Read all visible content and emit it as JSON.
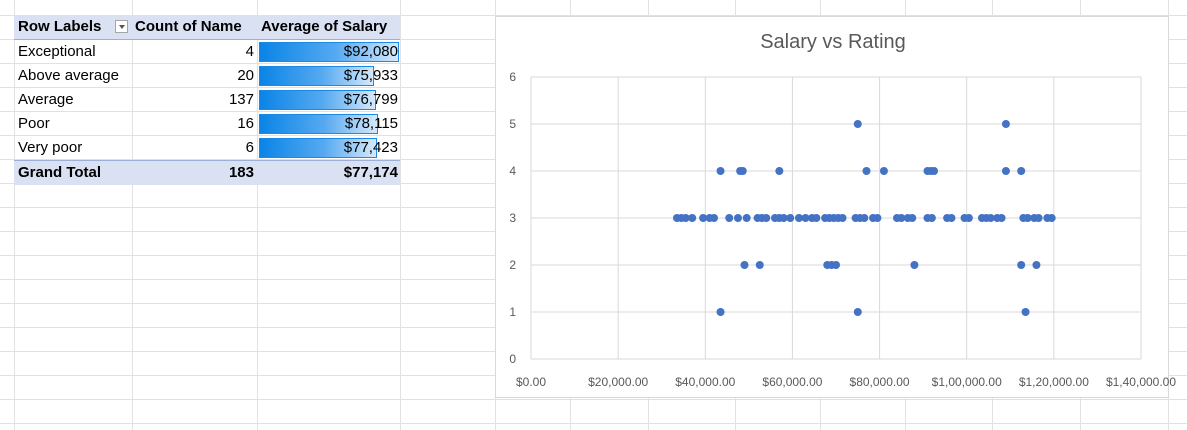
{
  "pivot": {
    "headers": {
      "row_labels": "Row Labels",
      "count_of_name": "Count of Name",
      "average_of_salary": "Average of Salary"
    },
    "rows": [
      {
        "label": "Exceptional",
        "count": "4",
        "average": "$92,080",
        "average_value": 92080
      },
      {
        "label": "Above average",
        "count": "20",
        "average": "$75,933",
        "average_value": 75933
      },
      {
        "label": "Average",
        "count": "137",
        "average": "$76,799",
        "average_value": 76799
      },
      {
        "label": "Poor",
        "count": "16",
        "average": "$78,115",
        "average_value": 78115
      },
      {
        "label": "Very poor",
        "count": "6",
        "average": "$77,423",
        "average_value": 77423
      }
    ],
    "grand_total": {
      "label": "Grand Total",
      "count": "183",
      "average": "$77,174"
    },
    "databar_color": "#0a84e6"
  },
  "chart_data": {
    "type": "scatter",
    "title": "Salary vs Rating",
    "xlabel": "",
    "ylabel": "",
    "xlim": [
      0,
      140000
    ],
    "ylim": [
      0,
      6
    ],
    "x_tick_labels": [
      "$0.00",
      "$20,000.00",
      "$40,000.00",
      "$60,000.00",
      "$80,000.00",
      "$1,00,000.00",
      "$1,20,000.00",
      "$1,40,000.00"
    ],
    "y_tick_labels": [
      "0",
      "1",
      "2",
      "3",
      "4",
      "5",
      "6"
    ],
    "grid": true,
    "legend": "none",
    "marker_color": "#4472c4",
    "series": [
      {
        "points": [
          [
            75000,
            5
          ],
          [
            109000,
            5
          ],
          [
            43500,
            4
          ],
          [
            48000,
            4
          ],
          [
            48600,
            4
          ],
          [
            57000,
            4
          ],
          [
            77000,
            4
          ],
          [
            81000,
            4
          ],
          [
            91000,
            4
          ],
          [
            91800,
            4
          ],
          [
            92500,
            4
          ],
          [
            109000,
            4
          ],
          [
            112500,
            4
          ],
          [
            33500,
            3
          ],
          [
            34500,
            3
          ],
          [
            35500,
            3
          ],
          [
            37000,
            3
          ],
          [
            39500,
            3
          ],
          [
            41000,
            3
          ],
          [
            42000,
            3
          ],
          [
            45500,
            3
          ],
          [
            47500,
            3
          ],
          [
            49500,
            3
          ],
          [
            52000,
            3
          ],
          [
            53000,
            3
          ],
          [
            54000,
            3
          ],
          [
            56000,
            3
          ],
          [
            57000,
            3
          ],
          [
            58000,
            3
          ],
          [
            59500,
            3
          ],
          [
            61500,
            3
          ],
          [
            63000,
            3
          ],
          [
            64500,
            3
          ],
          [
            65500,
            3
          ],
          [
            67500,
            3
          ],
          [
            68500,
            3
          ],
          [
            69500,
            3
          ],
          [
            70500,
            3
          ],
          [
            71500,
            3
          ],
          [
            74500,
            3
          ],
          [
            75500,
            3
          ],
          [
            76500,
            3
          ],
          [
            78500,
            3
          ],
          [
            79500,
            3
          ],
          [
            84000,
            3
          ],
          [
            85000,
            3
          ],
          [
            86500,
            3
          ],
          [
            87500,
            3
          ],
          [
            91000,
            3
          ],
          [
            92000,
            3
          ],
          [
            95500,
            3
          ],
          [
            96500,
            3
          ],
          [
            99500,
            3
          ],
          [
            100500,
            3
          ],
          [
            103500,
            3
          ],
          [
            104500,
            3
          ],
          [
            105500,
            3
          ],
          [
            107000,
            3
          ],
          [
            108000,
            3
          ],
          [
            113000,
            3
          ],
          [
            114000,
            3
          ],
          [
            115500,
            3
          ],
          [
            116500,
            3
          ],
          [
            118500,
            3
          ],
          [
            119500,
            3
          ],
          [
            49000,
            2
          ],
          [
            52500,
            2
          ],
          [
            68000,
            2
          ],
          [
            69000,
            2
          ],
          [
            70000,
            2
          ],
          [
            88000,
            2
          ],
          [
            112500,
            2
          ],
          [
            116000,
            2
          ],
          [
            43500,
            1
          ],
          [
            75000,
            1
          ],
          [
            113500,
            1
          ]
        ]
      }
    ]
  }
}
